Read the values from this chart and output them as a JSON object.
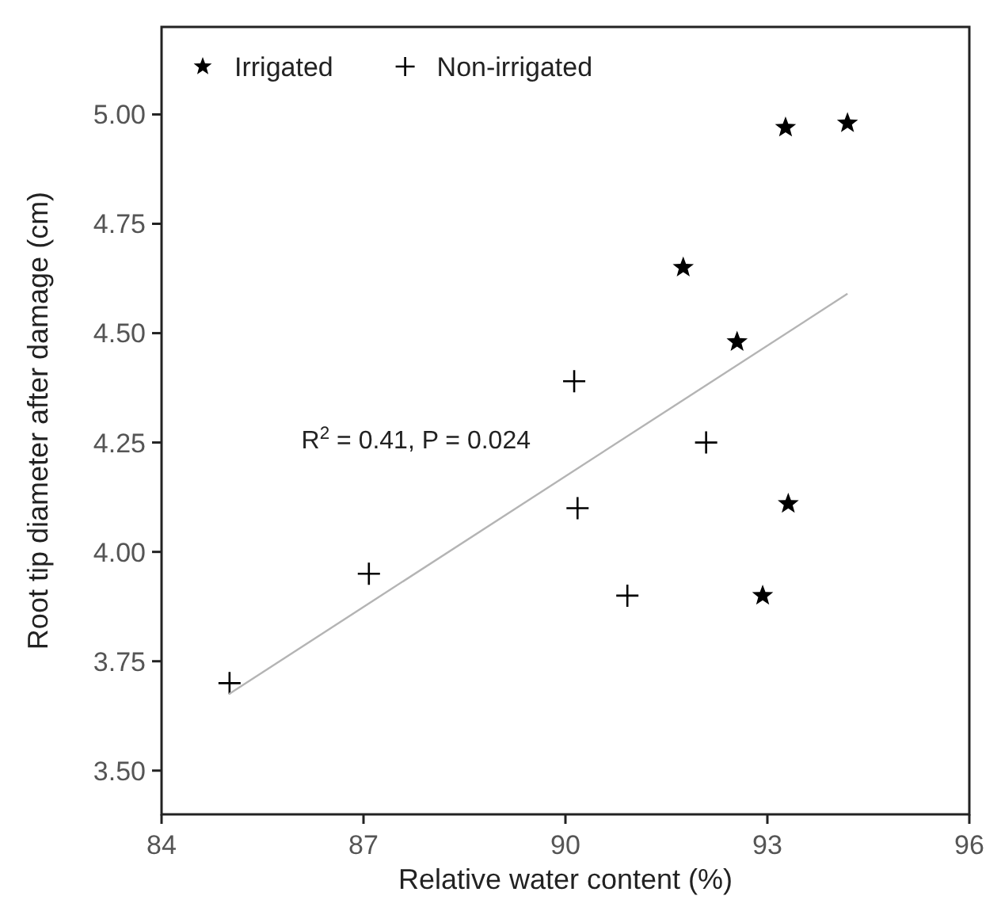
{
  "chart_data": {
    "type": "scatter",
    "xlabel": "Relative water content (%)",
    "ylabel": "Root tip diameter after damage (cm)",
    "xlim": [
      84,
      96
    ],
    "xticks": [
      84,
      87,
      90,
      93,
      96
    ],
    "ylim": [
      3.4,
      5.2
    ],
    "yticks": [
      {
        "value": 3.5,
        "label": "3.50"
      },
      {
        "value": 3.75,
        "label": "3.75"
      },
      {
        "value": 4,
        "label": "4.00"
      },
      {
        "value": 4.25,
        "label": "4.25"
      },
      {
        "value": 4.5,
        "label": "4.50"
      },
      {
        "value": 4.75,
        "label": "4.75"
      },
      {
        "value": 5,
        "label": "5.00"
      }
    ],
    "legend": "top left",
    "grid": false,
    "annotations": [
      "R$^{2}$ = 0.41, P = 0.024"
    ],
    "series": [
      {
        "name": "Irrigated",
        "marker": "star",
        "color": "#000000",
        "x": [
          93.27,
          94.19,
          91.75,
          92.55,
          93.31,
          92.93
        ],
        "values": [
          4.97,
          4.98,
          4.65,
          4.48,
          4.11,
          3.9
        ]
      },
      {
        "name": "Non-irrigated",
        "marker": "cross",
        "color": "#000000",
        "x": [
          85.01,
          87.08,
          90.18,
          90.92,
          90.13,
          92.09
        ],
        "values": [
          3.7,
          3.95,
          4.1,
          3.9,
          4.39,
          4.25
        ]
      },
      {
        "type": "line",
        "marker": "none",
        "color": "#b4b4b4",
        "x": [
          85.0,
          94.19
        ],
        "values": [
          3.675,
          4.59
        ]
      }
    ]
  }
}
